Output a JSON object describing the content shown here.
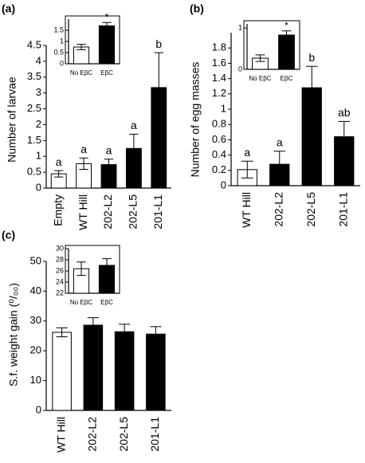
{
  "chart_data": [
    {
      "type": "bar",
      "panel": "(a)",
      "y_label": "Number of larvae",
      "categories": [
        "Empty",
        "WT Hill",
        "202-L2",
        "202-L5",
        "201-L1"
      ],
      "values": [
        0.45,
        0.77,
        0.74,
        1.25,
        3.17
      ],
      "errors": [
        0.1,
        0.18,
        0.17,
        0.45,
        1.1
      ],
      "colors": [
        "#ffffff",
        "#ffffff",
        "#000000",
        "#000000",
        "#000000"
      ],
      "annotations": [
        "a",
        "a",
        "a",
        "a",
        "b"
      ],
      "ylim": [
        0,
        4.5
      ],
      "yticks": [
        0,
        0.5,
        1,
        1.5,
        2,
        2.5,
        3,
        3.5,
        4,
        4.5
      ]
    },
    {
      "type": "bar",
      "categories": [
        "No EβC",
        "EβC"
      ],
      "values": [
        0.75,
        1.7
      ],
      "errors": [
        0.12,
        0.15
      ],
      "colors": [
        "#ffffff",
        "#000000"
      ],
      "annotations": [
        null,
        "*"
      ],
      "ylim": [
        0,
        2
      ],
      "yticks": [
        0,
        0.5,
        1,
        1.5
      ]
    },
    {
      "type": "bar",
      "panel": "(b)",
      "y_label": "Number of egg masses",
      "categories": [
        "WT Hill",
        "202-L2",
        "202-L5",
        "201-L1"
      ],
      "values": [
        0.21,
        0.28,
        1.28,
        0.64
      ],
      "errors": [
        0.11,
        0.17,
        0.28,
        0.2
      ],
      "colors": [
        "#ffffff",
        "#000000",
        "#000000",
        "#000000"
      ],
      "annotations": [
        "a",
        "a",
        "b",
        "ab"
      ],
      "ylim": [
        0,
        2
      ],
      "yticks": [
        0,
        0.2,
        0.4,
        0.6,
        0.8,
        1,
        1.2,
        1.4,
        1.6,
        1.8
      ]
    },
    {
      "type": "bar",
      "categories": [
        "No EβC",
        "EβC"
      ],
      "values": [
        0.27,
        0.83
      ],
      "errors": [
        0.08,
        0.1
      ],
      "colors": [
        "#ffffff",
        "#000000"
      ],
      "annotations": [
        null,
        "*"
      ],
      "ylim": [
        0,
        1.1
      ],
      "yticks": [
        0,
        1
      ]
    },
    {
      "type": "bar",
      "panel": "(c)",
      "y_label": "S.f. weight gain (⁰/₀₀)",
      "categories": [
        "WT Hill",
        "202-L2",
        "202-L5",
        "201-L1"
      ],
      "values": [
        26.2,
        28.6,
        26.4,
        25.6
      ],
      "errors": [
        1.5,
        2.5,
        2.5,
        2.5
      ],
      "colors": [
        "#ffffff",
        "#000000",
        "#000000",
        "#000000"
      ],
      "ylim": [
        0,
        50
      ],
      "yticks": [
        0,
        10,
        20,
        30,
        40,
        50
      ]
    },
    {
      "type": "bar",
      "categories": [
        "No EβC",
        "EβC"
      ],
      "values": [
        26.4,
        27.0
      ],
      "errors": [
        1.2,
        1.2
      ],
      "colors": [
        "#ffffff",
        "#000000"
      ],
      "ylim": [
        22,
        30
      ],
      "yticks": [
        22,
        24,
        26,
        28,
        30
      ]
    }
  ]
}
